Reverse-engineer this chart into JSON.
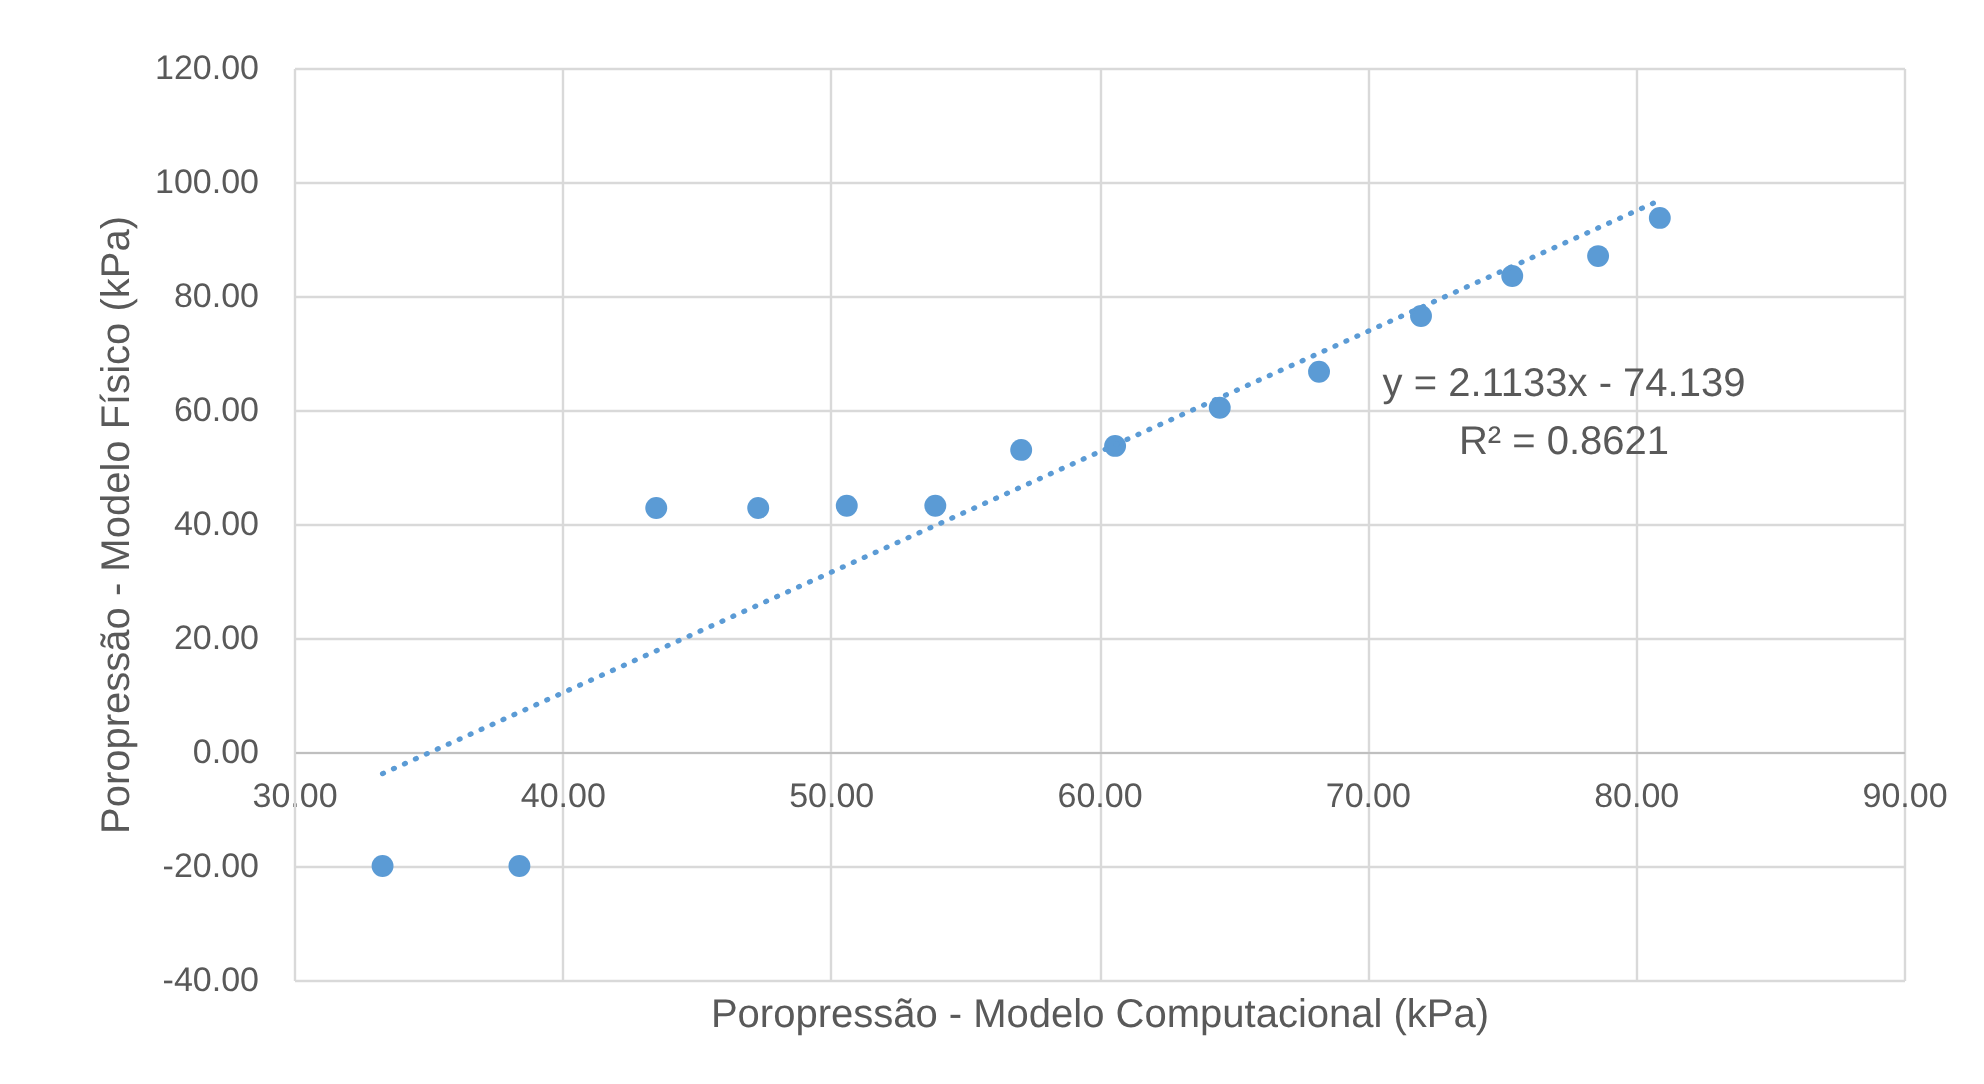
{
  "chart_data": {
    "type": "scatter",
    "xlabel": "Poropressão - Modelo Computacional (kPa)",
    "ylabel": "Poropressão - Modelo Físico (kPa)",
    "xlim": [
      30,
      90
    ],
    "ylim": [
      -40,
      120
    ],
    "xticks": [
      {
        "value": 30,
        "label": "30.00"
      },
      {
        "value": 40,
        "label": "40.00"
      },
      {
        "value": 50,
        "label": "50.00"
      },
      {
        "value": 60,
        "label": "60.00"
      },
      {
        "value": 70,
        "label": "70.00"
      },
      {
        "value": 80,
        "label": "80.00"
      },
      {
        "value": 90,
        "label": "90.00"
      }
    ],
    "yticks": [
      {
        "value": -40,
        "label": "-40.00"
      },
      {
        "value": -20,
        "label": "-20.00"
      },
      {
        "value": 0,
        "label": "0.00"
      },
      {
        "value": 20,
        "label": "20.00"
      },
      {
        "value": 40,
        "label": "40.00"
      },
      {
        "value": 60,
        "label": "60.00"
      },
      {
        "value": 80,
        "label": "80.00"
      },
      {
        "value": 100,
        "label": "100.00"
      },
      {
        "value": 120,
        "label": "120.00"
      }
    ],
    "grid": true,
    "marker": "circle",
    "annotations": [
      "y = 2.1133x - 74.139",
      "R² = 0.8621"
    ],
    "series": [
      {
        "color": "#5b9bd5",
        "x": [
          33.3,
          38.4,
          43.5,
          47.3,
          50.6,
          53.9,
          57.1,
          60.6,
          64.5,
          68.2,
          72.0,
          75.4,
          78.6,
          80.9
        ],
        "values": [
          -20,
          -20,
          42.8,
          42.8,
          43.2,
          43.2,
          53.0,
          53.7,
          60.4,
          66.7,
          76.5,
          83.5,
          87.0,
          93.7
        ]
      },
      {
        "type": "line",
        "color": "#5b9bd5",
        "line_style": "dotted",
        "marker": "none",
        "x": [
          33.3,
          80.9
        ],
        "values": [
          -3.8,
          96.8
        ]
      }
    ]
  }
}
